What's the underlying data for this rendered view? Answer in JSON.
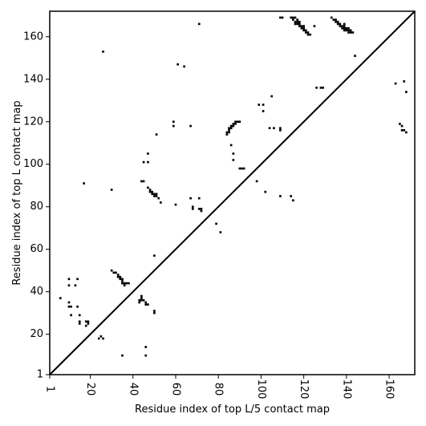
{
  "chart_data": {
    "type": "scatter",
    "title": "",
    "xlabel": "Residue index of top L/5 contact map",
    "ylabel": "Residue index of top L contact map",
    "xlim": [
      1,
      172
    ],
    "ylim": [
      1,
      172
    ],
    "xticks": [
      1,
      20,
      40,
      60,
      80,
      100,
      120,
      140,
      160
    ],
    "yticks": [
      1,
      20,
      40,
      60,
      80,
      100,
      120,
      140,
      160
    ],
    "grid": false,
    "diagonal": true,
    "marker": "square",
    "color": "#000000",
    "series": [
      {
        "name": "",
        "points": [
          [
            6,
            37
          ],
          [
            10,
            35
          ],
          [
            10,
            33
          ],
          [
            11,
            33
          ],
          [
            10,
            43
          ],
          [
            10,
            46
          ],
          [
            13,
            43
          ],
          [
            14,
            46
          ],
          [
            14,
            33
          ],
          [
            11,
            29
          ],
          [
            15,
            29
          ],
          [
            15,
            26
          ],
          [
            15,
            25
          ],
          [
            18,
            24
          ],
          [
            18,
            26
          ],
          [
            19,
            25
          ],
          [
            19,
            26
          ],
          [
            24,
            18
          ],
          [
            25,
            19
          ],
          [
            26,
            18
          ],
          [
            35,
            10
          ],
          [
            46,
            10
          ],
          [
            46,
            14
          ],
          [
            17,
            91
          ],
          [
            30,
            88
          ],
          [
            26,
            153
          ],
          [
            30,
            50
          ],
          [
            31,
            49
          ],
          [
            32,
            49
          ],
          [
            33,
            48
          ],
          [
            33,
            47
          ],
          [
            34,
            47
          ],
          [
            34,
            46
          ],
          [
            35,
            46
          ],
          [
            35,
            45
          ],
          [
            35,
            44
          ],
          [
            36,
            44
          ],
          [
            36,
            43
          ],
          [
            37,
            44
          ],
          [
            38,
            44
          ],
          [
            43,
            35
          ],
          [
            43,
            36
          ],
          [
            44,
            36
          ],
          [
            44,
            37
          ],
          [
            44,
            38
          ],
          [
            45,
            36
          ],
          [
            46,
            35
          ],
          [
            46,
            34
          ],
          [
            47,
            34
          ],
          [
            50,
            30
          ],
          [
            50,
            31
          ],
          [
            50,
            57
          ],
          [
            44,
            92
          ],
          [
            45,
            92
          ],
          [
            45,
            101
          ],
          [
            47,
            101
          ],
          [
            47,
            105
          ],
          [
            47,
            89
          ],
          [
            48,
            88
          ],
          [
            48,
            87
          ],
          [
            49,
            87
          ],
          [
            49,
            86
          ],
          [
            50,
            86
          ],
          [
            50,
            85
          ],
          [
            51,
            85
          ],
          [
            51,
            86
          ],
          [
            52,
            84
          ],
          [
            53,
            82
          ],
          [
            51,
            114
          ],
          [
            60,
            81
          ],
          [
            59,
            118
          ],
          [
            59,
            120
          ],
          [
            61,
            147
          ],
          [
            64,
            146
          ],
          [
            67,
            84
          ],
          [
            67,
            118
          ],
          [
            68,
            80
          ],
          [
            68,
            79
          ],
          [
            71,
            84
          ],
          [
            71,
            79
          ],
          [
            72,
            79
          ],
          [
            72,
            78
          ],
          [
            71,
            166
          ],
          [
            79,
            72
          ],
          [
            81,
            68
          ],
          [
            84,
            114
          ],
          [
            84,
            115
          ],
          [
            85,
            115
          ],
          [
            85,
            116
          ],
          [
            85,
            117
          ],
          [
            86,
            117
          ],
          [
            86,
            118
          ],
          [
            87,
            118
          ],
          [
            87,
            119
          ],
          [
            88,
            119
          ],
          [
            88,
            120
          ],
          [
            89,
            120
          ],
          [
            86,
            109
          ],
          [
            87,
            105
          ],
          [
            87,
            102
          ],
          [
            90,
            98
          ],
          [
            91,
            98
          ],
          [
            92,
            98
          ],
          [
            90,
            120
          ],
          [
            98,
            92
          ],
          [
            99,
            128
          ],
          [
            101,
            128
          ],
          [
            101,
            125
          ],
          [
            102,
            87
          ],
          [
            104,
            117
          ],
          [
            105,
            132
          ],
          [
            106,
            117
          ],
          [
            109,
            117
          ],
          [
            109,
            116
          ],
          [
            109,
            85
          ],
          [
            109,
            169
          ],
          [
            110,
            169
          ],
          [
            114,
            85
          ],
          [
            114,
            169
          ],
          [
            115,
            169
          ],
          [
            115,
            83
          ],
          [
            115,
            168
          ],
          [
            116,
            169
          ],
          [
            116,
            167
          ],
          [
            116,
            166
          ],
          [
            117,
            168
          ],
          [
            117,
            167
          ],
          [
            117,
            166
          ],
          [
            118,
            167
          ],
          [
            118,
            166
          ],
          [
            118,
            165
          ],
          [
            119,
            165
          ],
          [
            119,
            164
          ],
          [
            120,
            165
          ],
          [
            120,
            164
          ],
          [
            120,
            163
          ],
          [
            121,
            163
          ],
          [
            121,
            162
          ],
          [
            122,
            162
          ],
          [
            122,
            161
          ],
          [
            123,
            161
          ],
          [
            125,
            165
          ],
          [
            126,
            136
          ],
          [
            128,
            136
          ],
          [
            129,
            136
          ],
          [
            133,
            169
          ],
          [
            134,
            168
          ],
          [
            135,
            168
          ],
          [
            135,
            167
          ],
          [
            136,
            167
          ],
          [
            136,
            166
          ],
          [
            137,
            166
          ],
          [
            137,
            165
          ],
          [
            138,
            165
          ],
          [
            138,
            164
          ],
          [
            139,
            166
          ],
          [
            139,
            165
          ],
          [
            139,
            164
          ],
          [
            139,
            163
          ],
          [
            140,
            164
          ],
          [
            140,
            163
          ],
          [
            141,
            164
          ],
          [
            141,
            163
          ],
          [
            141,
            162
          ],
          [
            142,
            163
          ],
          [
            142,
            162
          ],
          [
            143,
            162
          ],
          [
            144,
            151
          ],
          [
            163,
            138
          ],
          [
            165,
            119
          ],
          [
            166,
            118
          ],
          [
            166,
            116
          ],
          [
            167,
            116
          ],
          [
            167,
            139
          ],
          [
            168,
            134
          ],
          [
            168,
            115
          ]
        ]
      }
    ]
  }
}
